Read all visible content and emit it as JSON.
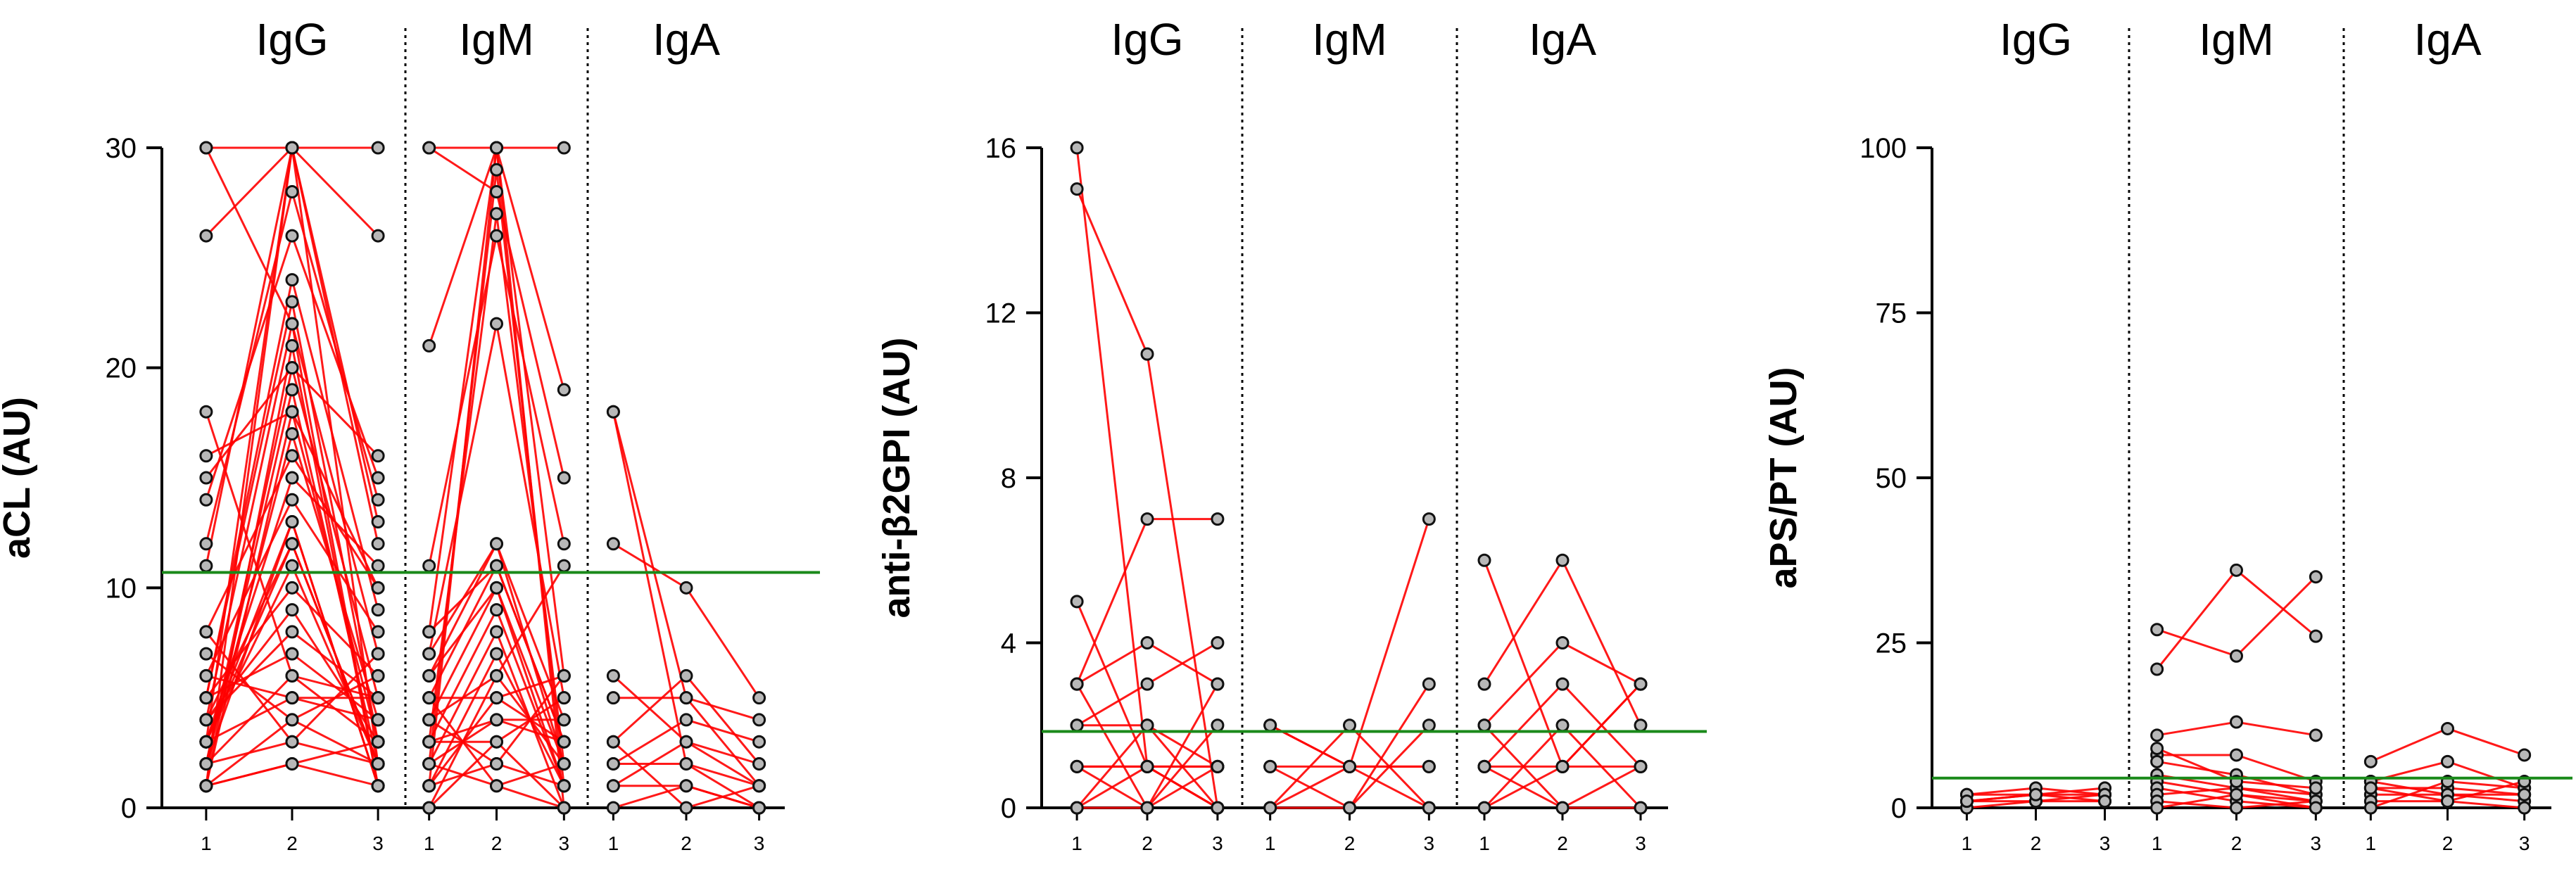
{
  "chart_data": [
    {
      "type": "line",
      "ylabel": "aCL (AU)",
      "ylim": [
        0,
        30
      ],
      "yticks": [
        0,
        10,
        20,
        30
      ],
      "threshold": 10.7,
      "threshold_color": "#1a8a1a",
      "line_color": "#ff0000",
      "groups": [
        {
          "name": "IgG",
          "x_ticks": [
            "1",
            "2",
            "3"
          ],
          "lines": [
            [
              1,
              2,
              1
            ],
            [
              2,
              3,
              2
            ],
            [
              3,
              5,
              4
            ],
            [
              1,
              4,
              2
            ],
            [
              2,
              6,
              3
            ],
            [
              4,
              8,
              5
            ],
            [
              5,
              10,
              6
            ],
            [
              3,
              12,
              2
            ],
            [
              6,
              14,
              8
            ],
            [
              8,
              16,
              10
            ],
            [
              1,
              18,
              3
            ],
            [
              2,
              20,
              5
            ],
            [
              4,
              22,
              7
            ],
            [
              5,
              24,
              9
            ],
            [
              3,
              30,
              12
            ],
            [
              11,
              30,
              13
            ],
            [
              12,
              28,
              14
            ],
            [
              14,
              26,
              15
            ],
            [
              15,
              20,
              16
            ],
            [
              16,
              18,
              10
            ],
            [
              18,
              6,
              5
            ],
            [
              26,
              30,
              26
            ],
            [
              30,
              30,
              30
            ],
            [
              30,
              22,
              1
            ],
            [
              1,
              30,
              2
            ],
            [
              2,
              13,
              1
            ],
            [
              3,
              11,
              2
            ],
            [
              4,
              9,
              3
            ],
            [
              5,
              7,
              4
            ],
            [
              6,
              5,
              5
            ],
            [
              7,
              4,
              6
            ],
            [
              8,
              3,
              7
            ],
            [
              1,
              2,
              3
            ],
            [
              2,
              17,
              4
            ],
            [
              3,
              13,
              1
            ],
            [
              4,
              12,
              2
            ],
            [
              5,
              23,
              3
            ],
            [
              1,
              21,
              1
            ],
            [
              2,
              19,
              2
            ],
            [
              3,
              15,
              11
            ]
          ]
        },
        {
          "name": "IgM",
          "x_ticks": [
            "1",
            "2",
            "3"
          ],
          "lines": [
            [
              21,
              30,
              19
            ],
            [
              30,
              30,
              30
            ],
            [
              30,
              28,
              15
            ],
            [
              11,
              26,
              12
            ],
            [
              8,
              30,
              6
            ],
            [
              7,
              22,
              5
            ],
            [
              6,
              12,
              4
            ],
            [
              5,
              11,
              3
            ],
            [
              4,
              10,
              2
            ],
            [
              3,
              9,
              1
            ],
            [
              2,
              8,
              0
            ],
            [
              1,
              7,
              1
            ],
            [
              0,
              6,
              2
            ],
            [
              1,
              5,
              3
            ],
            [
              2,
              4,
              4
            ],
            [
              3,
              3,
              5
            ],
            [
              4,
              2,
              6
            ],
            [
              5,
              1,
              0
            ],
            [
              6,
              10,
              1
            ],
            [
              7,
              12,
              2
            ],
            [
              8,
              11,
              3
            ],
            [
              1,
              30,
              0
            ],
            [
              2,
              29,
              1
            ],
            [
              3,
              27,
              2
            ],
            [
              4,
              6,
              11
            ],
            [
              5,
              5,
              6
            ],
            [
              0,
              3,
              0
            ],
            [
              1,
              2,
              1
            ],
            [
              2,
              1,
              2
            ],
            [
              3,
              4,
              3
            ]
          ]
        },
        {
          "name": "IgA",
          "x_ticks": [
            "1",
            "2",
            "3"
          ],
          "lines": [
            [
              18,
              5,
              1
            ],
            [
              18,
              2,
              0
            ],
            [
              12,
              10,
              5
            ],
            [
              6,
              3,
              1
            ],
            [
              5,
              5,
              4
            ],
            [
              3,
              6,
              2
            ],
            [
              2,
              2,
              1
            ],
            [
              1,
              1,
              0
            ],
            [
              3,
              0,
              1
            ],
            [
              2,
              4,
              3
            ],
            [
              0,
              1,
              0
            ],
            [
              1,
              3,
              2
            ]
          ]
        }
      ]
    },
    {
      "type": "line",
      "ylabel": "anti-β2GPI (AU)",
      "ylim": [
        0,
        16
      ],
      "yticks": [
        0,
        4,
        8,
        12,
        16
      ],
      "threshold": 1.85,
      "threshold_color": "#1a8a1a",
      "line_color": "#ff0000",
      "groups": [
        {
          "name": "IgG",
          "x_ticks": [
            "1",
            "2",
            "3"
          ],
          "lines": [
            [
              16,
              1,
              0
            ],
            [
              15,
              11,
              0
            ],
            [
              5,
              1,
              1
            ],
            [
              3,
              7,
              7
            ],
            [
              3,
              4,
              3
            ],
            [
              2,
              3,
              4
            ],
            [
              2,
              2,
              1
            ],
            [
              1,
              1,
              1
            ],
            [
              1,
              0,
              2
            ],
            [
              0,
              1,
              0
            ],
            [
              0,
              0,
              3
            ],
            [
              1,
              1,
              0
            ],
            [
              3,
              0,
              1
            ],
            [
              0,
              2,
              0
            ]
          ]
        },
        {
          "name": "IgM",
          "x_ticks": [
            "1",
            "2",
            "3"
          ],
          "lines": [
            [
              2,
              1,
              7
            ],
            [
              1,
              1,
              1
            ],
            [
              0,
              2,
              0
            ],
            [
              0,
              0,
              3
            ],
            [
              1,
              0,
              2
            ],
            [
              2,
              1,
              0
            ],
            [
              0,
              1,
              1
            ]
          ]
        },
        {
          "name": "IgA",
          "x_ticks": [
            "1",
            "2",
            "3"
          ],
          "lines": [
            [
              6,
              1,
              3
            ],
            [
              3,
              6,
              2
            ],
            [
              2,
              4,
              3
            ],
            [
              1,
              3,
              1
            ],
            [
              1,
              1,
              1
            ],
            [
              0,
              2,
              0
            ],
            [
              2,
              0,
              1
            ],
            [
              0,
              1,
              3
            ],
            [
              1,
              0,
              0
            ]
          ]
        }
      ]
    },
    {
      "type": "line",
      "ylabel": "aPS/PT (AU)",
      "ylim": [
        0,
        100
      ],
      "yticks": [
        0,
        25,
        50,
        75,
        100
      ],
      "threshold": 4.5,
      "threshold_color": "#1a8a1a",
      "line_color": "#ff0000",
      "groups": [
        {
          "name": "IgG",
          "x_ticks": [
            "1",
            "2",
            "3"
          ],
          "lines": [
            [
              1,
              2,
              2
            ],
            [
              2,
              2,
              3
            ],
            [
              1,
              1,
              2
            ],
            [
              0,
              1,
              1
            ],
            [
              2,
              3,
              2
            ],
            [
              1,
              2,
              1
            ]
          ]
        },
        {
          "name": "IgM",
          "x_ticks": [
            "1",
            "2",
            "3"
          ],
          "lines": [
            [
              27,
              23,
              35
            ],
            [
              21,
              36,
              26
            ],
            [
              11,
              13,
              11
            ],
            [
              8,
              8,
              4
            ],
            [
              7,
              5,
              2
            ],
            [
              5,
              3,
              1
            ],
            [
              4,
              2,
              1
            ],
            [
              3,
              1,
              0
            ],
            [
              2,
              3,
              2
            ],
            [
              1,
              0,
              1
            ],
            [
              0,
              2,
              0
            ],
            [
              9,
              4,
              3
            ]
          ]
        },
        {
          "name": "IgA",
          "x_ticks": [
            "1",
            "2",
            "3"
          ],
          "lines": [
            [
              7,
              12,
              8
            ],
            [
              4,
              7,
              3
            ],
            [
              3,
              3,
              2
            ],
            [
              2,
              2,
              1
            ],
            [
              1,
              1,
              0
            ],
            [
              0,
              4,
              3
            ],
            [
              4,
              2,
              2
            ],
            [
              3,
              1,
              4
            ]
          ]
        }
      ]
    }
  ]
}
